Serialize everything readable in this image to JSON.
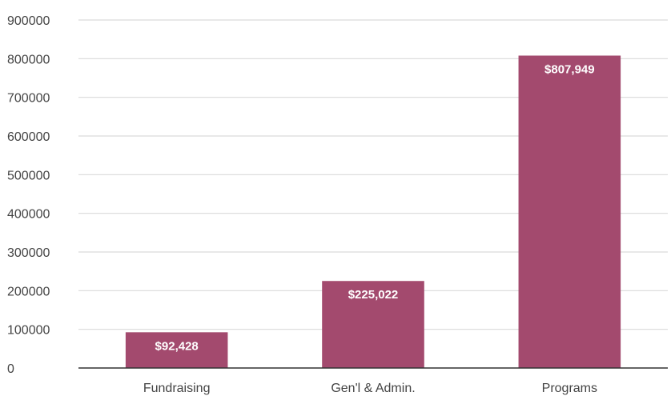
{
  "chart_data": {
    "type": "bar",
    "categories": [
      "Fundraising",
      "Gen'l & Admin.",
      "Programs"
    ],
    "values": [
      92428,
      225022,
      807949
    ],
    "data_labels": [
      "$92,428",
      "$225,022",
      "$807,949"
    ],
    "title": "",
    "xlabel": "",
    "ylabel": "",
    "ylim": [
      0,
      900000
    ],
    "yticks": [
      0,
      100000,
      200000,
      300000,
      400000,
      500000,
      600000,
      700000,
      800000,
      900000
    ],
    "ytick_labels": [
      "0",
      "100000",
      "200000",
      "300000",
      "400000",
      "500000",
      "600000",
      "700000",
      "800000",
      "900000"
    ],
    "grid": true,
    "legend": "none",
    "bar_color": "#a34a6e",
    "grid_color": "#d9d9d9",
    "axis_color": "#333333"
  }
}
